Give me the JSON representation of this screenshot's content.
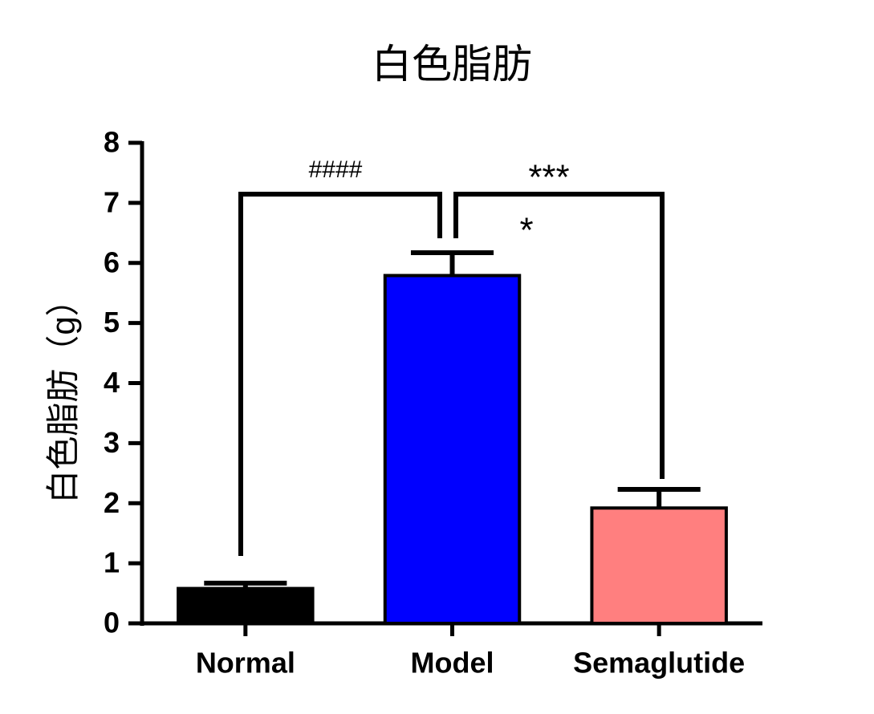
{
  "chart_data": {
    "type": "bar",
    "title": "白色脂肪",
    "y_label": "白色脂肪（g）",
    "categories": [
      "Normal",
      "Model",
      "Semaglutide"
    ],
    "values": [
      0.58,
      5.79,
      1.92
    ],
    "errors": [
      0.09,
      0.38,
      0.31
    ],
    "colors": [
      "#000000",
      "#0000ff",
      "#ff7f7f"
    ],
    "ylim": [
      0,
      8
    ],
    "yticks": [
      0,
      1,
      2,
      3,
      4,
      5,
      6,
      7,
      8
    ],
    "annotations": [
      "####",
      "***",
      "*"
    ]
  }
}
